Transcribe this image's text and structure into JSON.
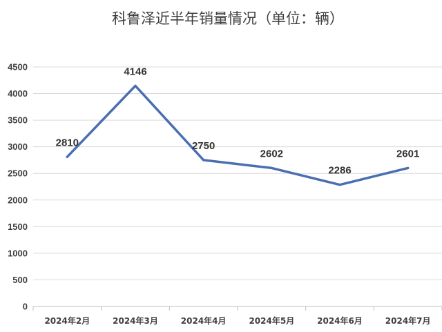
{
  "chart_data": {
    "type": "line",
    "title": "科鲁泽近半年销量情况（单位：辆）",
    "categories": [
      "2024年2月",
      "2024年3月",
      "2024年4月",
      "2024年5月",
      "2024年6月",
      "2024年7月"
    ],
    "series": [
      {
        "values": [
          2810,
          4146,
          2750,
          2602,
          2286,
          2601
        ],
        "color": "#4a6fb0"
      }
    ],
    "ylim": [
      0,
      4500
    ],
    "y_ticks": [
      0,
      500,
      1000,
      1500,
      2000,
      2500,
      3000,
      3500,
      4000,
      4500
    ],
    "grid": true,
    "legend": "none",
    "data_labels": [
      "2810",
      "4146",
      "2750",
      "2602",
      "2286",
      "2601"
    ]
  }
}
